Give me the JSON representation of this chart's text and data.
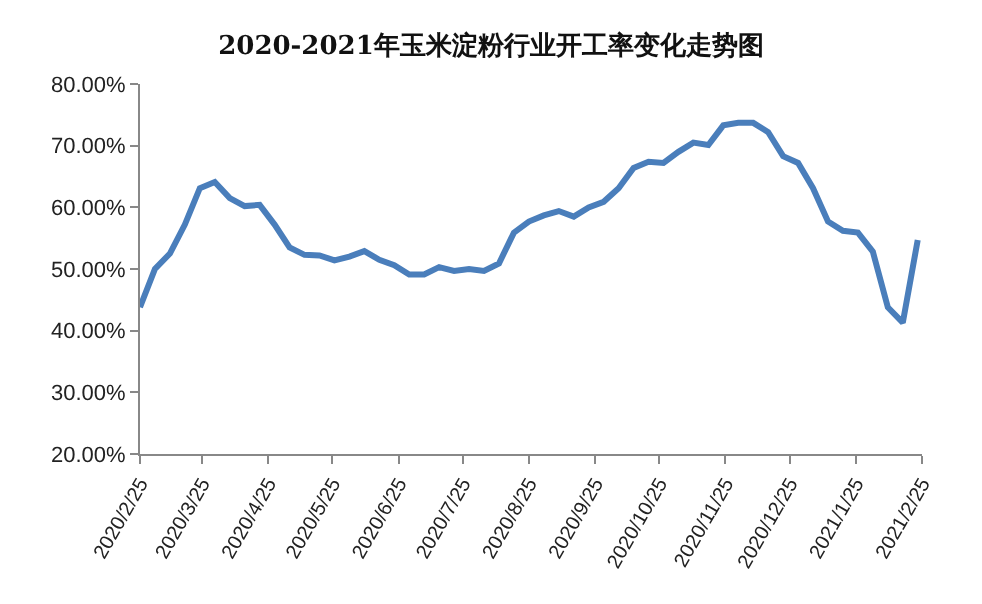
{
  "chart_data": {
    "type": "line",
    "title": "2020-2021年玉米淀粉行业开工率变化走势图",
    "x": [
      "2020-02-25",
      "2020-03-03",
      "2020-03-10",
      "2020-03-17",
      "2020-03-24",
      "2020-03-31",
      "2020-04-07",
      "2020-04-14",
      "2020-04-21",
      "2020-04-28",
      "2020-05-05",
      "2020-05-12",
      "2020-05-19",
      "2020-05-26",
      "2020-06-02",
      "2020-06-09",
      "2020-06-16",
      "2020-06-23",
      "2020-06-30",
      "2020-07-07",
      "2020-07-14",
      "2020-07-21",
      "2020-07-28",
      "2020-08-04",
      "2020-08-11",
      "2020-08-18",
      "2020-08-25",
      "2020-09-01",
      "2020-09-08",
      "2020-09-15",
      "2020-09-22",
      "2020-09-29",
      "2020-10-06",
      "2020-10-13",
      "2020-10-20",
      "2020-10-27",
      "2020-11-03",
      "2020-11-10",
      "2020-11-17",
      "2020-11-24",
      "2020-12-01",
      "2020-12-08",
      "2020-12-15",
      "2020-12-22",
      "2020-12-29",
      "2021-01-05",
      "2021-01-12",
      "2021-01-19",
      "2021-01-26",
      "2021-02-02",
      "2021-02-09",
      "2021-02-16",
      "2021-02-23"
    ],
    "series": [
      {
        "color": "#4a7ebb",
        "values": [
          43.8,
          50.0,
          52.5,
          57.2,
          63.1,
          64.1,
          61.5,
          60.2,
          60.4,
          57.2,
          53.5,
          52.3,
          52.2,
          51.4,
          52.0,
          52.9,
          51.5,
          50.6,
          49.1,
          49.1,
          50.3,
          49.7,
          50.0,
          49.7,
          50.9,
          55.9,
          57.7,
          58.7,
          59.4,
          58.5,
          60.0,
          60.9,
          63.1,
          66.4,
          67.4,
          67.2,
          69.0,
          70.5,
          70.1,
          73.3,
          73.7,
          73.7,
          72.2,
          68.3,
          67.2,
          63.1,
          57.7,
          56.2,
          55.9,
          52.8,
          43.8,
          41.3,
          54.7
        ]
      }
    ],
    "xlim": [
      "2020-02-25",
      "2021-02-25"
    ],
    "xticks": [
      {
        "value": "2020-02-25",
        "label": "2020/2/25"
      },
      {
        "value": "2020-03-25",
        "label": "2020/3/25"
      },
      {
        "value": "2020-04-25",
        "label": "2020/4/25"
      },
      {
        "value": "2020-05-25",
        "label": "2020/5/25"
      },
      {
        "value": "2020-06-25",
        "label": "2020/6/25"
      },
      {
        "value": "2020-07-25",
        "label": "2020/7/25"
      },
      {
        "value": "2020-08-25",
        "label": "2020/8/25"
      },
      {
        "value": "2020-09-25",
        "label": "2020/9/25"
      },
      {
        "value": "2020-10-25",
        "label": "2020/10/25"
      },
      {
        "value": "2020-11-25",
        "label": "2020/11/25"
      },
      {
        "value": "2020-12-25",
        "label": "2020/12/25"
      },
      {
        "value": "2021-01-25",
        "label": "2021/1/25"
      },
      {
        "value": "2021-02-25",
        "label": "2021/2/25"
      }
    ],
    "ylim": [
      20,
      80
    ],
    "yticks": [
      {
        "value": 20,
        "label": "20.00%"
      },
      {
        "value": 30,
        "label": "30.00%"
      },
      {
        "value": 40,
        "label": "40.00%"
      },
      {
        "value": 50,
        "label": "50.00%"
      },
      {
        "value": 60,
        "label": "60.00%"
      },
      {
        "value": 70,
        "label": "70.00%"
      },
      {
        "value": 80,
        "label": "80.00%"
      }
    ],
    "marker": "none",
    "line_style": "solid"
  }
}
